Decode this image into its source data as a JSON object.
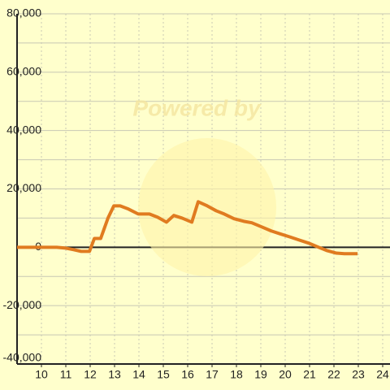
{
  "chart_data": {
    "type": "line",
    "watermark": "Powered by",
    "x": [
      9,
      10.63,
      11,
      11.3,
      11.63,
      11.97,
      12.17,
      12.43,
      12.73,
      12.97,
      13.23,
      13.57,
      13.97,
      14.43,
      14.77,
      15.13,
      15.43,
      15.77,
      16.17,
      16.43,
      16.8,
      17.17,
      17.5,
      17.9,
      18.3,
      18.63,
      19.03,
      19.43,
      19.83,
      20.17,
      20.57,
      20.97,
      21.37,
      21.7,
      22.1,
      22.43,
      22.97
    ],
    "series": [
      {
        "color": "#e07b20",
        "values": [
          0,
          0,
          -300,
          -800,
          -1400,
          -1400,
          3000,
          3000,
          10000,
          14200,
          14200,
          13100,
          11400,
          11400,
          10300,
          8600,
          10900,
          10000,
          8600,
          15600,
          14200,
          12500,
          11400,
          9800,
          8900,
          8400,
          7000,
          5600,
          4500,
          3600,
          2500,
          1400,
          0,
          -1100,
          -2000,
          -2200,
          -2200
        ]
      }
    ],
    "xlim": [
      9,
      24.3
    ],
    "xticks": [
      10,
      11,
      12,
      13,
      14,
      15,
      16,
      17,
      18,
      19,
      20,
      21,
      22,
      23,
      24
    ],
    "ylim": [
      -40000,
      80000
    ],
    "yticks": [
      {
        "value": -40000,
        "label": "-40,000"
      },
      {
        "value": -20000,
        "label": "-20,000"
      },
      0,
      {
        "value": 20000,
        "label": "20,000"
      },
      {
        "value": 40000,
        "label": "40,000"
      },
      {
        "value": 60000,
        "label": "60,000"
      },
      {
        "value": 80000,
        "label": "80,000"
      }
    ],
    "y_minor_ticks": [
      -30000,
      -10000,
      10000,
      30000,
      50000,
      70000
    ],
    "grid": true
  }
}
